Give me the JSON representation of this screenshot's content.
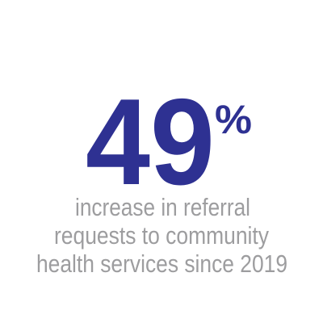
{
  "stat": {
    "value": "49",
    "unit": "%",
    "caption": [
      "increase in referral",
      "requests to community",
      "health services since 2019"
    ]
  }
}
